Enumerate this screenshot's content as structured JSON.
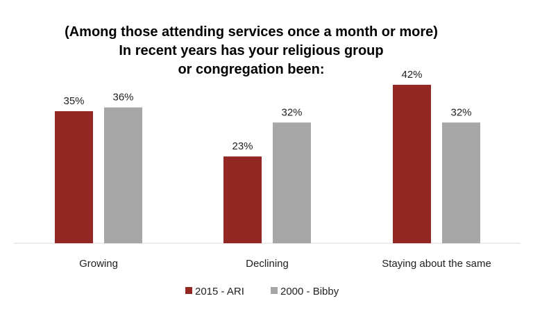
{
  "chart_data": {
    "type": "bar",
    "title_lines": [
      "(Among those attending services once a month or more)",
      "In recent years has your religious group",
      "or congregation been:"
    ],
    "categories": [
      "Growing",
      "Declining",
      "Staying about the same"
    ],
    "series": [
      {
        "name": "2015  - ARI",
        "values": [
          35,
          23,
          42
        ],
        "labels": [
          "35%",
          "23%",
          "42%"
        ],
        "color": "#922723"
      },
      {
        "name": "2000 - Bibby",
        "values": [
          36,
          32,
          32
        ],
        "labels": [
          "36%",
          "32%",
          "32%"
        ],
        "color": "#a6a6a6"
      }
    ],
    "ylim": [
      0,
      42
    ],
    "grid": false,
    "legend": "bottom"
  }
}
